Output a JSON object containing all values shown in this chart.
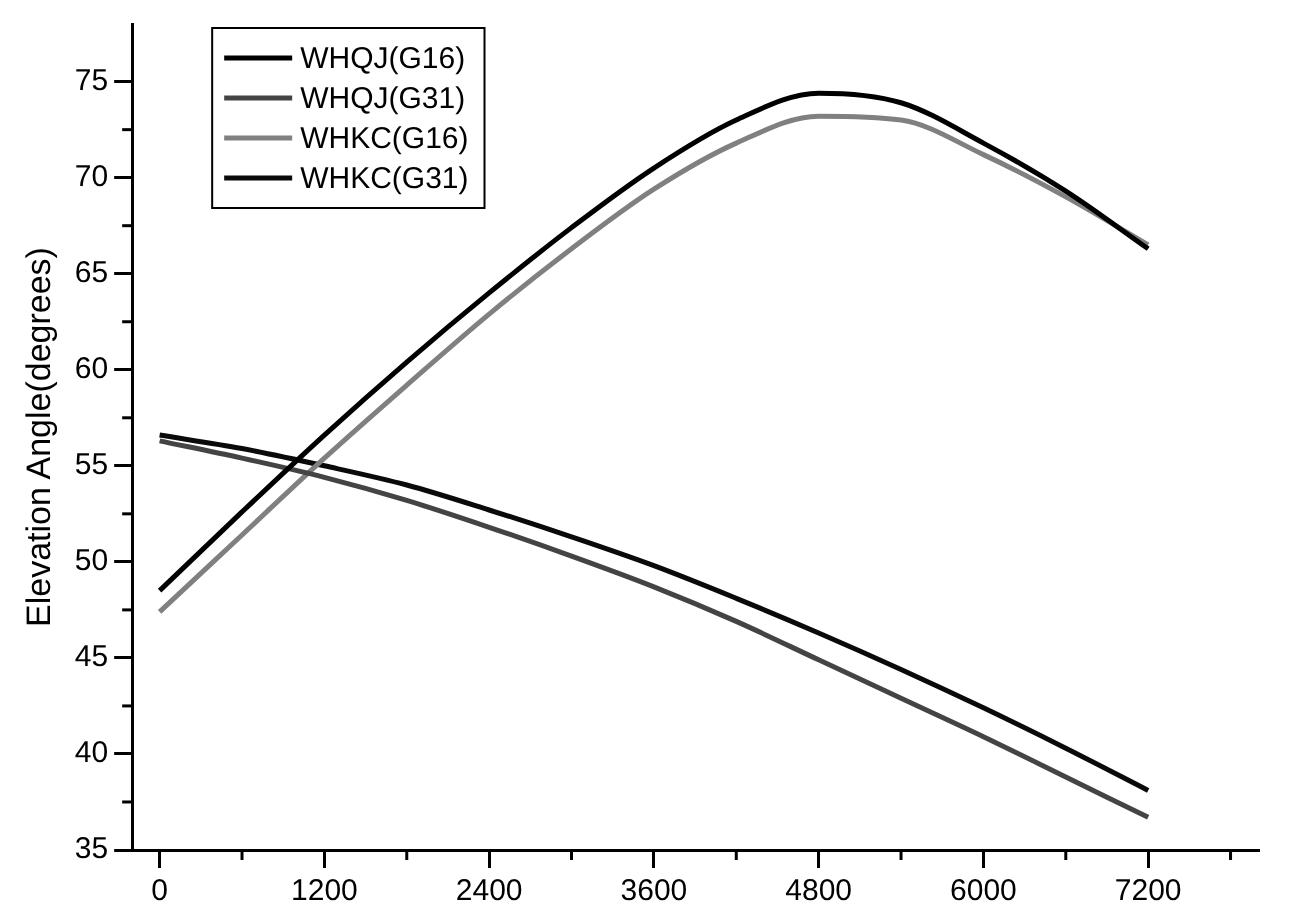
{
  "chart_data": {
    "type": "line",
    "ylabel": "Elevation Angle(degrees)",
    "xlim": [
      -200,
      8000
    ],
    "ylim": [
      35,
      78
    ],
    "xticks": [
      0,
      {
        "value": 600,
        "label": null
      },
      1200,
      {
        "value": 1800,
        "label": null
      },
      2400,
      {
        "value": 3000,
        "label": null
      },
      3600,
      {
        "value": 4200,
        "label": null
      },
      4800,
      {
        "value": 5400,
        "label": null
      },
      6000,
      {
        "value": 6600,
        "label": null
      },
      7200,
      {
        "value": 7800,
        "label": null
      }
    ],
    "yticks": [
      35,
      {
        "value": 37.5,
        "label": null
      },
      40,
      {
        "value": 42.5,
        "label": null
      },
      45,
      {
        "value": 47.5,
        "label": null
      },
      50,
      {
        "value": 52.5,
        "label": null
      },
      55,
      {
        "value": 57.5,
        "label": null
      },
      60,
      {
        "value": 62.5,
        "label": null
      },
      65,
      {
        "value": 67.5,
        "label": null
      },
      70,
      {
        "value": 72.5,
        "label": null
      },
      75
    ],
    "x": [
      0,
      600,
      1200,
      1800,
      2400,
      3000,
      3600,
      4200,
      4800,
      5400,
      6000,
      6600,
      7200
    ],
    "legend": "top left",
    "grid": false,
    "marker": "none",
    "line_style": "solid",
    "series": [
      {
        "name": "WHQJ(G16)",
        "color": "#000000",
        "values": [
          48.5,
          52.6,
          56.6,
          60.4,
          64.0,
          67.4,
          70.5,
          73.0,
          74.4,
          73.9,
          71.8,
          69.3,
          66.3
        ]
      },
      {
        "name": "WHQJ(G31)",
        "color": "#444444",
        "values": [
          56.3,
          55.4,
          54.4,
          53.2,
          51.8,
          50.3,
          48.7,
          46.9,
          44.9,
          42.9,
          40.9,
          38.8,
          36.7
        ]
      },
      {
        "name": "WHKC(G16)",
        "color": "#808080",
        "values": [
          47.4,
          51.4,
          55.4,
          59.2,
          62.9,
          66.3,
          69.4,
          71.8,
          73.2,
          73.0,
          71.2,
          69.0,
          66.5
        ]
      },
      {
        "name": "WHKC(G31)",
        "color": "#0a0a0a",
        "values": [
          56.6,
          55.9,
          55.0,
          54.0,
          52.7,
          51.3,
          49.8,
          48.1,
          46.3,
          44.4,
          42.4,
          40.3,
          38.1
        ]
      }
    ]
  }
}
